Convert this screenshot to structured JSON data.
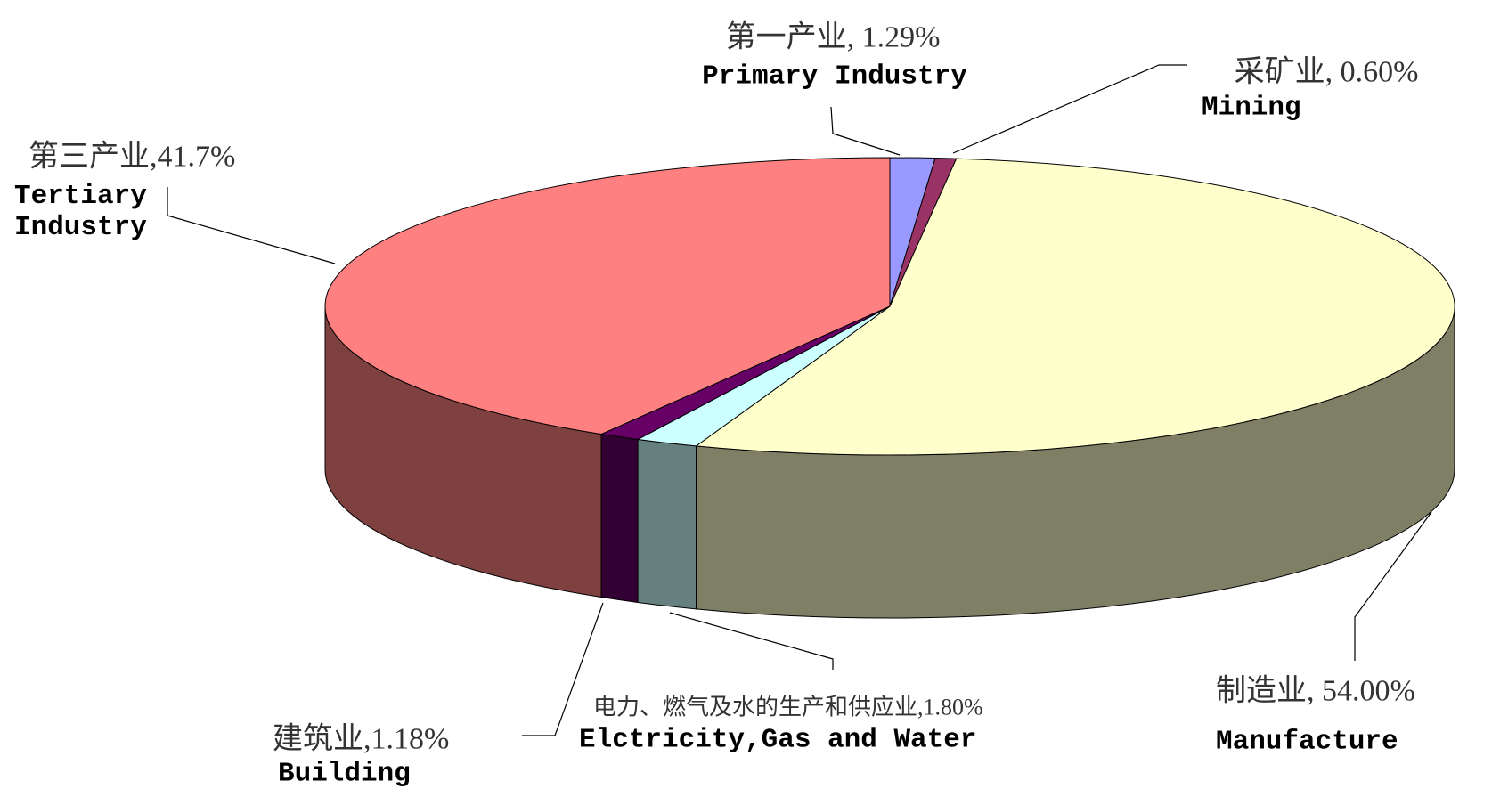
{
  "chart_data": {
    "type": "pie",
    "categories": [
      "Primary Industry",
      "Mining",
      "Manufacture",
      "Elctricity,Gas and Water",
      "Building",
      "Tertiary Industry"
    ],
    "value_labels": [
      "第一产业, 1.29%",
      "采矿业, 0.60%",
      "制造业, 54.00%",
      "电力、燃气及水的生产和供应业,1.80%",
      "建筑业,1.18%",
      "第三产业,41.7%"
    ],
    "values": [
      1.29,
      0.6,
      54.0,
      1.8,
      1.18,
      41.7
    ],
    "colors": [
      "#9999ff",
      "#993366",
      "#ffffcc",
      "#ccffff",
      "#660066",
      "#ff8080"
    ]
  }
}
